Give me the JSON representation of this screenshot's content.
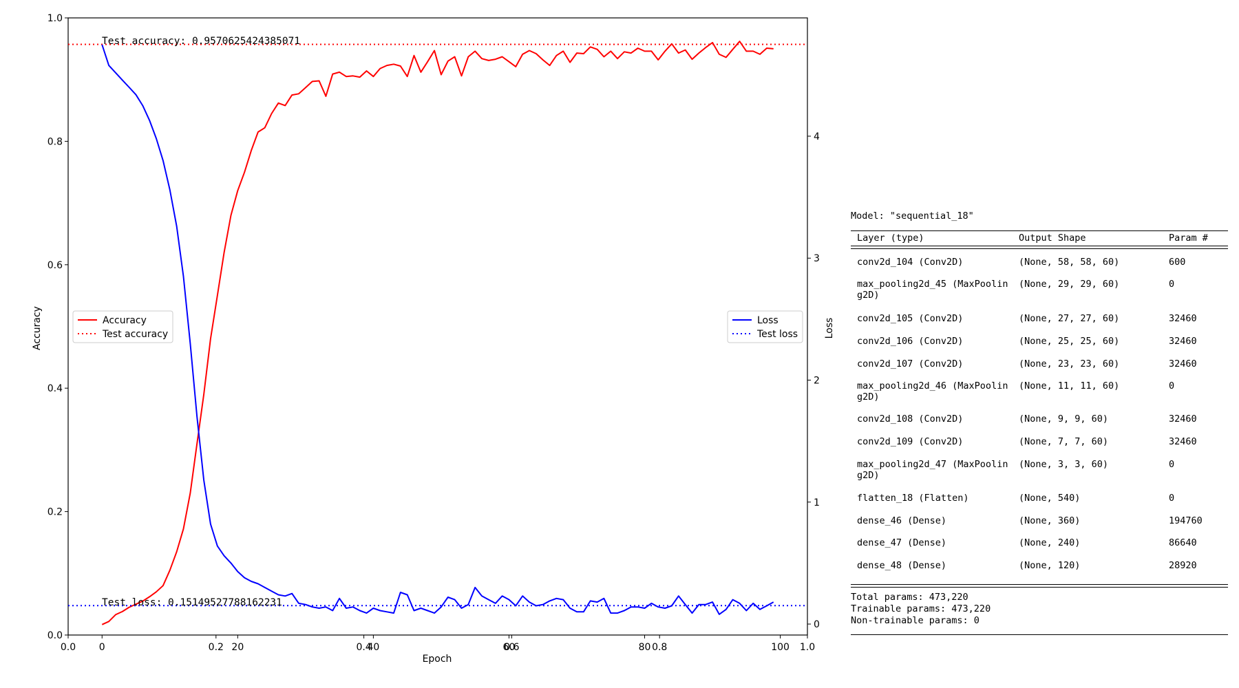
{
  "chart_data": {
    "type": "line",
    "xlabel": "Epoch",
    "ylabel_left": "Accuracy",
    "ylabel_right": "Loss",
    "x_range": [
      -5,
      104
    ],
    "x_ticks": [
      0,
      20,
      40,
      60,
      80,
      100
    ],
    "overlay_x_ticks": [
      "0.0",
      "0.2",
      "0.4",
      "0.6",
      "0.8",
      "1.0"
    ],
    "ylim_left": [
      0.0,
      1.0
    ],
    "y_ticks_left": [
      "0.0",
      "0.2",
      "0.4",
      "0.6",
      "0.8",
      "1.0"
    ],
    "ylim_right": [
      -0.09,
      4.97
    ],
    "y_ticks_right": [
      "0",
      "1",
      "2",
      "3",
      "4"
    ],
    "legend_left": {
      "placement": "center-left",
      "entries": [
        "Accuracy",
        "Test accuracy"
      ]
    },
    "legend_right": {
      "placement": "center-right",
      "entries": [
        "Loss",
        "Test loss"
      ]
    },
    "series": [
      {
        "name": "Accuracy",
        "axis": "left",
        "color": "#ff0000",
        "style": "solid",
        "x": [
          0,
          1,
          2,
          3,
          4,
          5,
          6,
          7,
          8,
          9,
          10,
          11,
          12,
          13,
          14,
          15,
          16,
          17,
          18,
          19,
          20,
          21,
          22,
          23,
          24,
          25,
          26,
          27,
          28,
          29,
          30,
          31,
          32,
          33,
          34,
          35,
          36,
          37,
          38,
          39,
          40,
          41,
          42,
          43,
          44,
          45,
          46,
          47,
          48,
          49,
          50,
          51,
          52,
          53,
          54,
          55,
          56,
          57,
          58,
          59,
          60,
          61,
          62,
          63,
          64,
          65,
          66,
          67,
          68,
          69,
          70,
          71,
          72,
          73,
          74,
          75,
          76,
          77,
          78,
          79,
          80,
          81,
          82,
          83,
          84,
          85,
          86,
          87,
          88,
          89,
          90,
          91,
          92,
          93,
          94,
          95,
          96,
          97,
          98,
          99
        ],
        "y": [
          0.017,
          0.022,
          0.033,
          0.038,
          0.045,
          0.05,
          0.055,
          0.062,
          0.07,
          0.08,
          0.105,
          0.135,
          0.172,
          0.23,
          0.31,
          0.39,
          0.48,
          0.55,
          0.62,
          0.68,
          0.72,
          0.75,
          0.785,
          0.815,
          0.822,
          0.845,
          0.862,
          0.858,
          0.875,
          0.877,
          0.887,
          0.897,
          0.898,
          0.873,
          0.909,
          0.912,
          0.905,
          0.906,
          0.904,
          0.914,
          0.905,
          0.918,
          0.923,
          0.925,
          0.922,
          0.905,
          0.939,
          0.912,
          0.929,
          0.947,
          0.908,
          0.93,
          0.937,
          0.906,
          0.937,
          0.946,
          0.934,
          0.931,
          0.933,
          0.937,
          0.929,
          0.921,
          0.941,
          0.947,
          0.942,
          0.932,
          0.923,
          0.939,
          0.946,
          0.928,
          0.943,
          0.942,
          0.953,
          0.949,
          0.937,
          0.946,
          0.934,
          0.945,
          0.943,
          0.951,
          0.946,
          0.946,
          0.932,
          0.946,
          0.958,
          0.943,
          0.948,
          0.933,
          0.943,
          0.952,
          0.96,
          0.941,
          0.936,
          0.949,
          0.962,
          0.946,
          0.946,
          0.941,
          0.951,
          0.95
        ]
      },
      {
        "name": "Test accuracy",
        "axis": "left",
        "color": "#ff0000",
        "style": "dotted",
        "value": 0.9570625424385071
      },
      {
        "name": "Loss",
        "axis": "right",
        "color": "#0000ff",
        "style": "solid",
        "x": [
          0,
          1,
          2,
          3,
          4,
          5,
          6,
          7,
          8,
          9,
          10,
          11,
          12,
          13,
          14,
          15,
          16,
          17,
          18,
          19,
          20,
          21,
          22,
          23,
          24,
          25,
          26,
          27,
          28,
          29,
          30,
          31,
          32,
          33,
          34,
          35,
          36,
          37,
          38,
          39,
          40,
          41,
          42,
          43,
          44,
          45,
          46,
          47,
          48,
          49,
          50,
          51,
          52,
          53,
          54,
          55,
          56,
          57,
          58,
          59,
          60,
          61,
          62,
          63,
          64,
          65,
          66,
          67,
          68,
          69,
          70,
          71,
          72,
          73,
          74,
          75,
          76,
          77,
          78,
          79,
          80,
          81,
          82,
          83,
          84,
          85,
          86,
          87,
          88,
          89,
          90,
          91,
          92,
          93,
          94,
          95,
          96,
          97,
          98,
          99
        ],
        "y": [
          4.75,
          4.58,
          4.52,
          4.46,
          4.4,
          4.34,
          4.25,
          4.13,
          3.98,
          3.8,
          3.56,
          3.26,
          2.85,
          2.3,
          1.7,
          1.18,
          0.82,
          0.64,
          0.56,
          0.5,
          0.43,
          0.38,
          0.35,
          0.33,
          0.3,
          0.27,
          0.24,
          0.23,
          0.25,
          0.17,
          0.16,
          0.14,
          0.13,
          0.14,
          0.11,
          0.21,
          0.13,
          0.14,
          0.11,
          0.09,
          0.13,
          0.11,
          0.1,
          0.09,
          0.26,
          0.24,
          0.11,
          0.13,
          0.11,
          0.09,
          0.14,
          0.22,
          0.2,
          0.13,
          0.16,
          0.3,
          0.23,
          0.2,
          0.17,
          0.23,
          0.2,
          0.15,
          0.23,
          0.18,
          0.15,
          0.16,
          0.19,
          0.21,
          0.2,
          0.13,
          0.1,
          0.1,
          0.19,
          0.18,
          0.21,
          0.09,
          0.09,
          0.11,
          0.14,
          0.14,
          0.13,
          0.17,
          0.14,
          0.13,
          0.15,
          0.23,
          0.16,
          0.09,
          0.16,
          0.16,
          0.18,
          0.08,
          0.12,
          0.2,
          0.17,
          0.11,
          0.17,
          0.12,
          0.15,
          0.18
        ]
      },
      {
        "name": "Test loss",
        "axis": "right",
        "color": "#0000ff",
        "style": "dotted",
        "value": 0.15149527788162231
      }
    ],
    "annotations": {
      "test_accuracy": "Test accuracy: 0.9570625424385071",
      "test_loss": "Test loss: 0.15149527788162231"
    },
    "grid": false
  },
  "model_summary": {
    "title": "Model: \"sequential_18\"",
    "headers": [
      "Layer (type)",
      "Output Shape",
      "Param #"
    ],
    "rows": [
      {
        "layer": "conv2d_104 (Conv2D)",
        "shape": "(None, 58, 58, 60)",
        "params": "600"
      },
      {
        "layer": "max_pooling2d_45 (MaxPoolin\ng2D)",
        "shape": "(None, 29, 29, 60)",
        "params": "0"
      },
      {
        "layer": "conv2d_105 (Conv2D)",
        "shape": "(None, 27, 27, 60)",
        "params": "32460"
      },
      {
        "layer": "conv2d_106 (Conv2D)",
        "shape": "(None, 25, 25, 60)",
        "params": "32460"
      },
      {
        "layer": "conv2d_107 (Conv2D)",
        "shape": "(None, 23, 23, 60)",
        "params": "32460"
      },
      {
        "layer": "max_pooling2d_46 (MaxPoolin\ng2D)",
        "shape": "(None, 11, 11, 60)",
        "params": "0"
      },
      {
        "layer": "conv2d_108 (Conv2D)",
        "shape": "(None, 9, 9, 60)",
        "params": "32460"
      },
      {
        "layer": "conv2d_109 (Conv2D)",
        "shape": "(None, 7, 7, 60)",
        "params": "32460"
      },
      {
        "layer": "max_pooling2d_47 (MaxPoolin\ng2D)",
        "shape": "(None, 3, 3, 60)",
        "params": "0"
      },
      {
        "layer": "flatten_18 (Flatten)",
        "shape": "(None, 540)",
        "params": "0"
      },
      {
        "layer": "dense_46 (Dense)",
        "shape": "(None, 360)",
        "params": "194760"
      },
      {
        "layer": "dense_47 (Dense)",
        "shape": "(None, 240)",
        "params": "86640"
      },
      {
        "layer": "dense_48 (Dense)",
        "shape": "(None, 120)",
        "params": "28920"
      }
    ],
    "total_params": "Total params: 473,220",
    "trainable_params": "Trainable params: 473,220",
    "non_trainable_params": "Non-trainable params: 0"
  }
}
